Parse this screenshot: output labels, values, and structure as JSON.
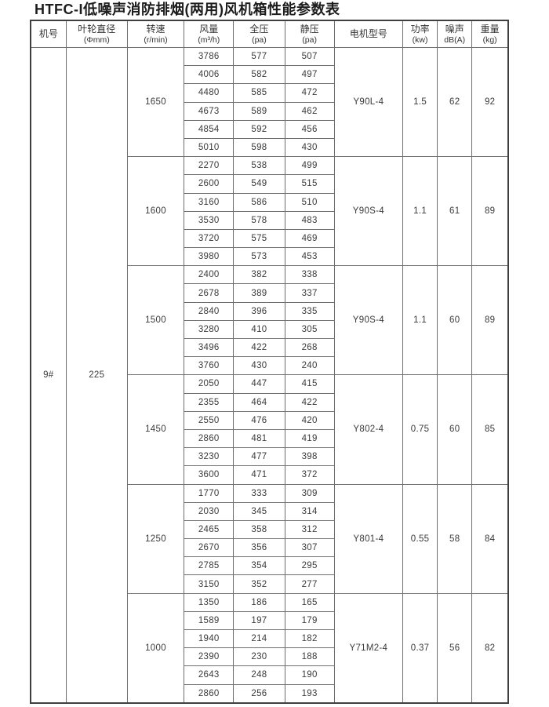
{
  "page": {
    "title": "HTFC-I低噪声消防排烟(两用)风机箱性能参数表"
  },
  "colors": {
    "ink": "#3a3a3a",
    "border_inner": "#6e6e6e",
    "border_outer": "#3f3f3f",
    "background": "#ffffff"
  },
  "table": {
    "columns": [
      {
        "key": "machine-no",
        "label": "机号",
        "unit": ""
      },
      {
        "key": "impeller-diameter",
        "label": "叶轮直径",
        "unit": "(Φmm)"
      },
      {
        "key": "speed",
        "label": "转速",
        "unit": "(r/min)"
      },
      {
        "key": "flow",
        "label": "风量",
        "unit": "(m³/h)"
      },
      {
        "key": "total-pressure",
        "label": "全压",
        "unit": "(pa)"
      },
      {
        "key": "static-pressure",
        "label": "静压",
        "unit": "(pa)"
      },
      {
        "key": "motor-model",
        "label": "电机型号",
        "unit": ""
      },
      {
        "key": "power",
        "label": "功率",
        "unit": "(kw)"
      },
      {
        "key": "noise",
        "label": "噪声",
        "unit": "dB(A)"
      },
      {
        "key": "weight",
        "label": "重量",
        "unit": "(kg)"
      }
    ],
    "machine_no": "9#",
    "impeller_diameter": "225",
    "blocks": [
      {
        "speed": "1650",
        "motor": "Y90L-4",
        "power": "1.5",
        "noise": "62",
        "weight": "92",
        "rows": [
          [
            "3786",
            "577",
            "507"
          ],
          [
            "4006",
            "582",
            "497"
          ],
          [
            "4480",
            "585",
            "472"
          ],
          [
            "4673",
            "589",
            "462"
          ],
          [
            "4854",
            "592",
            "456"
          ],
          [
            "5010",
            "598",
            "430"
          ]
        ]
      },
      {
        "speed": "1600",
        "motor": "Y90S-4",
        "power": "1.1",
        "noise": "61",
        "weight": "89",
        "rows": [
          [
            "2270",
            "538",
            "499"
          ],
          [
            "2600",
            "549",
            "515"
          ],
          [
            "3160",
            "586",
            "510"
          ],
          [
            "3530",
            "578",
            "483"
          ],
          [
            "3720",
            "575",
            "469"
          ],
          [
            "3980",
            "573",
            "453"
          ]
        ]
      },
      {
        "speed": "1500",
        "motor": "Y90S-4",
        "power": "1.1",
        "noise": "60",
        "weight": "89",
        "rows": [
          [
            "2400",
            "382",
            "338"
          ],
          [
            "2678",
            "389",
            "337"
          ],
          [
            "2840",
            "396",
            "335"
          ],
          [
            "3280",
            "410",
            "305"
          ],
          [
            "3496",
            "422",
            "268"
          ],
          [
            "3760",
            "430",
            "240"
          ]
        ]
      },
      {
        "speed": "1450",
        "motor": "Y802-4",
        "power": "0.75",
        "noise": "60",
        "weight": "85",
        "rows": [
          [
            "2050",
            "447",
            "415"
          ],
          [
            "2355",
            "464",
            "422"
          ],
          [
            "2550",
            "476",
            "420"
          ],
          [
            "2860",
            "481",
            "419"
          ],
          [
            "3230",
            "477",
            "398"
          ],
          [
            "3600",
            "471",
            "372"
          ]
        ]
      },
      {
        "speed": "1250",
        "motor": "Y801-4",
        "power": "0.55",
        "noise": "58",
        "weight": "84",
        "rows": [
          [
            "1770",
            "333",
            "309"
          ],
          [
            "2030",
            "345",
            "314"
          ],
          [
            "2465",
            "358",
            "312"
          ],
          [
            "2670",
            "356",
            "307"
          ],
          [
            "2785",
            "354",
            "295"
          ],
          [
            "3150",
            "352",
            "277"
          ]
        ]
      },
      {
        "speed": "1000",
        "motor": "Y71M2-4",
        "power": "0.37",
        "noise": "56",
        "weight": "82",
        "rows": [
          [
            "1350",
            "186",
            "165"
          ],
          [
            "1589",
            "197",
            "179"
          ],
          [
            "1940",
            "214",
            "182"
          ],
          [
            "2390",
            "230",
            "188"
          ],
          [
            "2643",
            "248",
            "190"
          ],
          [
            "2860",
            "256",
            "193"
          ]
        ]
      }
    ]
  }
}
